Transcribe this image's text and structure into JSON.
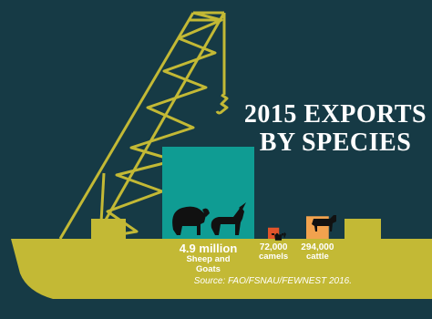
{
  "title_line1": "2015 EXPORTS",
  "title_line2": "BY SPECIES",
  "source": "Source: FAO/FSNAU/FEWNEST 2016.",
  "colors": {
    "background": "#163a45",
    "ship": "#c3b935",
    "sheep_goats": "#0f9c93",
    "camels": "#e2542a",
    "cattle": "#f2a24e"
  },
  "chart_data": {
    "type": "bar",
    "title": "2015 EXPORTS BY SPECIES",
    "categories": [
      "Sheep and Goats",
      "camels",
      "cattle"
    ],
    "values": [
      4900000,
      72000,
      294000
    ],
    "value_labels": [
      "4.9 million",
      "72,000",
      "294,000"
    ],
    "icons": [
      "sheep-goat-icon",
      "camel-icon",
      "cattle-icon"
    ]
  }
}
